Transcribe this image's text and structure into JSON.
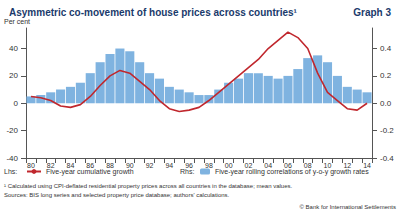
{
  "chart_data": {
    "type": "bar_line",
    "title": "Asymmetric co-movement of house prices across countries¹",
    "graph_number": "Graph 3",
    "y_label": "Per cent",
    "legend_groups": [
      "Lhs:",
      "Rhs:"
    ],
    "notes": [
      "¹ Calculated using CPI-deflated residential property prices across all countries in the database; mean values.",
      "Sources: BIS long series and selected property price database; authors' calculations."
    ],
    "copyright": "© Bank for International Settlements",
    "categories": [
      "80",
      null,
      "82",
      null,
      "84",
      null,
      "86",
      null,
      "88",
      null,
      "90",
      null,
      "92",
      null,
      "94",
      null,
      "96",
      null,
      "98",
      null,
      "00",
      null,
      "02",
      null,
      "04",
      null,
      "06",
      null,
      "08",
      null,
      "10",
      null,
      "12",
      null,
      "14"
    ],
    "series": [
      {
        "name": "Five-year cumulative growth",
        "type": "line",
        "color": "#c0272d",
        "axis": "y",
        "values": [
          5,
          4,
          2,
          -2,
          -3,
          -1,
          5,
          13,
          20,
          24,
          22,
          16,
          10,
          2,
          -4,
          -6,
          -5,
          -3,
          2,
          8,
          14,
          20,
          26,
          32,
          40,
          46,
          52,
          48,
          40,
          22,
          8,
          2,
          -4,
          -5,
          0
        ]
      },
      {
        "name": "Five-year rolling correlations of y-o-y growth rates",
        "type": "bar",
        "color": "#7fb3e0",
        "axis": "y2",
        "values": [
          0.05,
          0.06,
          0.08,
          0.1,
          0.12,
          0.15,
          0.22,
          0.3,
          0.36,
          0.4,
          0.38,
          0.3,
          0.22,
          0.18,
          0.12,
          0.1,
          0.08,
          0.06,
          0.06,
          0.1,
          0.15,
          0.18,
          0.22,
          0.22,
          0.2,
          0.18,
          0.2,
          0.25,
          0.33,
          0.35,
          0.3,
          0.2,
          0.12,
          0.1,
          0.08
        ]
      }
    ],
    "ylim": [
      -40,
      55
    ],
    "yticks": [
      -40,
      -20,
      0,
      20,
      40
    ],
    "y2lim": [
      -0.4,
      0.55
    ],
    "y2ticks": [
      -0.4,
      -0.2,
      {
        "value": 0,
        "label": "0.0"
      },
      0.2,
      0.4
    ],
    "grid": false
  }
}
